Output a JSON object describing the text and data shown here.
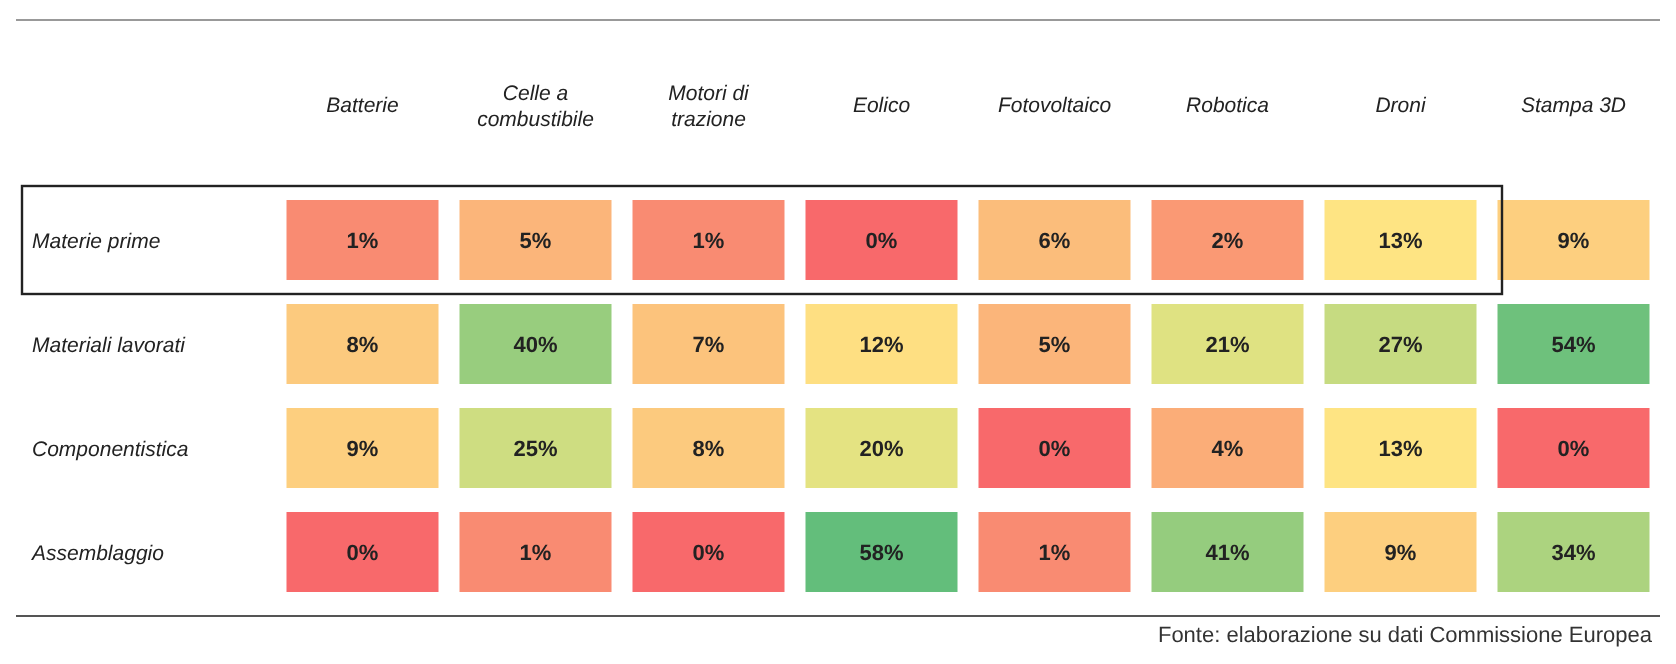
{
  "chart_data": {
    "type": "heatmap",
    "categories": [
      "Batterie",
      "Celle a combustibile",
      "Motori di trazione",
      "Eolico",
      "Fotovoltaico",
      "Robotica",
      "Droni",
      "Stampa 3D"
    ],
    "y_categories": [
      "Materie prime",
      "Materiali lavorati",
      "Componentistica",
      "Assemblaggio"
    ],
    "cells": [
      [
        1,
        5,
        1,
        0,
        6,
        2,
        13,
        9
      ],
      [
        8,
        40,
        7,
        12,
        5,
        21,
        27,
        54
      ],
      [
        9,
        25,
        8,
        20,
        0,
        4,
        13,
        0
      ],
      [
        0,
        1,
        0,
        58,
        1,
        41,
        9,
        34
      ]
    ],
    "cell_labels": [
      [
        "1%",
        "5%",
        "1%",
        "0%",
        "6%",
        "2%",
        "13%",
        "9%"
      ],
      [
        "8%",
        "40%",
        "7%",
        "12%",
        "5%",
        "21%",
        "27%",
        "54%"
      ],
      [
        "9%",
        "25%",
        "8%",
        "20%",
        "0%",
        "4%",
        "13%",
        "0%"
      ],
      [
        "0%",
        "1%",
        "0%",
        "58%",
        "1%",
        "41%",
        "9%",
        "34%"
      ]
    ],
    "annotations": [
      "Fonte: elaborazione su dati Commissione Europea"
    ]
  }
}
